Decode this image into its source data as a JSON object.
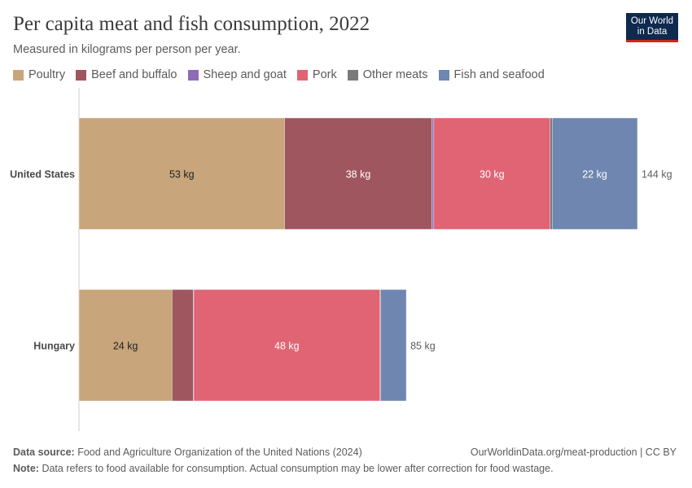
{
  "header": {
    "title": "Per capita meat and fish consumption, 2022",
    "subtitle": "Measured in kilograms per person per year."
  },
  "logo": {
    "line1": "Our World",
    "line2": "in Data"
  },
  "legend": [
    {
      "label": "Poultry",
      "color": "#c8a57a"
    },
    {
      "label": "Beef and buffalo",
      "color": "#a0565f"
    },
    {
      "label": "Sheep and goat",
      "color": "#8d6bb5"
    },
    {
      "label": "Pork",
      "color": "#e06474"
    },
    {
      "label": "Other meats",
      "color": "#7a7a7a"
    },
    {
      "label": "Fish and seafood",
      "color": "#6f87b0"
    }
  ],
  "chart_data": {
    "type": "bar",
    "orientation": "horizontal",
    "stacked": true,
    "unit": "kg",
    "categories": [
      "United States",
      "Hungary"
    ],
    "series": [
      {
        "name": "Poultry",
        "values": [
          53,
          24
        ],
        "labels": [
          "53 kg",
          "24 kg"
        ],
        "color": "#c8a57a"
      },
      {
        "name": "Beef and buffalo",
        "values": [
          38,
          5.5
        ],
        "labels": [
          "38 kg",
          ""
        ],
        "color": "#a0565f"
      },
      {
        "name": "Sheep and goat",
        "values": [
          0.5,
          0.1
        ],
        "labels": [
          "",
          ""
        ],
        "color": "#8d6bb5"
      },
      {
        "name": "Pork",
        "values": [
          30,
          48
        ],
        "labels": [
          "30 kg",
          "48 kg"
        ],
        "color": "#e06474"
      },
      {
        "name": "Other meats",
        "values": [
          0.5,
          0.2
        ],
        "labels": [
          "",
          ""
        ],
        "color": "#7a7a7a"
      },
      {
        "name": "Fish and seafood",
        "values": [
          22,
          6.6
        ],
        "labels": [
          "22 kg",
          ""
        ],
        "color": "#6f87b0"
      }
    ],
    "totals": [
      144,
      85
    ],
    "total_labels": [
      "144 kg",
      "85 kg"
    ],
    "xlim": [
      0,
      144
    ],
    "legend_position": "top-left"
  },
  "footer": {
    "source_label": "Data source:",
    "source_text": "Food and Agriculture Organization of the United Nations (2024)",
    "url_text": "OurWorldinData.org/meat-production | CC BY",
    "note_label": "Note:",
    "note_text": "Data refers to food available for consumption. Actual consumption may be lower after correction for food wastage."
  }
}
